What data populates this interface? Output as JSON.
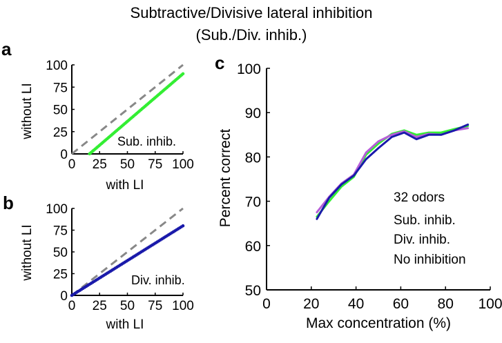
{
  "figure": {
    "title_line1": "Subtractive/Divisive lateral inhibition",
    "title_line2": "(Sub./Div. inhib.)"
  },
  "colors": {
    "sub": "#33ee33",
    "div": "#1a1aaa",
    "none": "#b65ed8",
    "identity": "#888888",
    "axis": "#000000"
  },
  "chart_data": [
    {
      "panel": "a",
      "type": "scatter",
      "title": "",
      "xlabel": "with LI",
      "ylabel": "without LI",
      "xlim": [
        0,
        100
      ],
      "ylim": [
        0,
        100
      ],
      "xticks": [
        0,
        25,
        50,
        75,
        100
      ],
      "yticks": [
        0,
        25,
        50,
        75,
        100
      ],
      "annotation": "Sub. inhib.",
      "reference_line": {
        "style": "dashed",
        "x": [
          0,
          100
        ],
        "y": [
          0,
          100
        ]
      },
      "series": [
        {
          "name": "Sub. inhib.",
          "slope": 1.07,
          "intercept": -17,
          "x_start": 16,
          "x_end": 100,
          "n_points": 70
        }
      ]
    },
    {
      "panel": "b",
      "type": "scatter",
      "title": "",
      "xlabel": "with LI",
      "ylabel": "without LI",
      "xlim": [
        0,
        100
      ],
      "ylim": [
        0,
        100
      ],
      "xticks": [
        0,
        25,
        50,
        75,
        100
      ],
      "yticks": [
        0,
        25,
        50,
        75,
        100
      ],
      "annotation": "Div. inhib.",
      "reference_line": {
        "style": "dashed",
        "x": [
          0,
          100
        ],
        "y": [
          0,
          100
        ]
      },
      "series": [
        {
          "name": "Div. inhib.",
          "slope": 0.8,
          "intercept": 0,
          "x_start": 0,
          "x_end": 100,
          "n_points": 70
        }
      ]
    },
    {
      "panel": "c",
      "type": "line",
      "title": "",
      "xlabel": "Max concentration (%)",
      "ylabel": "Percent correct",
      "xlim": [
        0,
        100
      ],
      "ylim": [
        50,
        100
      ],
      "xticks": [
        0,
        20,
        40,
        60,
        80,
        100
      ],
      "yticks": [
        50,
        60,
        70,
        80,
        90,
        100
      ],
      "x": [
        22.5,
        28,
        33.5,
        39,
        44.5,
        50,
        56,
        61.5,
        67,
        72.5,
        78,
        84,
        90
      ],
      "legend_title": "32 odors",
      "legend_position": "bottom-right",
      "series": [
        {
          "name": "Sub. inhib.",
          "values": [
            66.5,
            70.0,
            73.3,
            75.5,
            80.5,
            83.0,
            85.2,
            86.0,
            85.0,
            85.5,
            85.5,
            86.3,
            87.0
          ]
        },
        {
          "name": "Div. inhib.",
          "values": [
            66.0,
            70.8,
            73.8,
            75.8,
            79.5,
            82.0,
            84.5,
            85.5,
            84.0,
            85.0,
            85.0,
            86.0,
            87.3
          ]
        },
        {
          "name": "No inhibition",
          "values": [
            67.5,
            71.0,
            74.0,
            76.0,
            81.0,
            83.5,
            85.0,
            85.8,
            84.5,
            85.2,
            85.0,
            86.0,
            86.5
          ]
        }
      ]
    }
  ]
}
